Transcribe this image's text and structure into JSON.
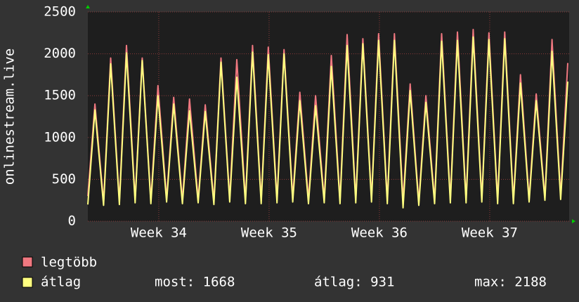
{
  "chart_data": {
    "type": "line",
    "ylabel": "onlinestream.live",
    "x": [
      0,
      0.45,
      1,
      1.45,
      2,
      2.45,
      3,
      3.45,
      4,
      4.45,
      5,
      5.45,
      6,
      6.45,
      7,
      7.45,
      8,
      8.45,
      9,
      9.45,
      10,
      10.45,
      11,
      11.45,
      12,
      12.45,
      13,
      13.45,
      14,
      14.45,
      15,
      15.45,
      16,
      16.45,
      17,
      17.45,
      18,
      18.45,
      19,
      19.45,
      20,
      20.45,
      21,
      21.45,
      22,
      22.45,
      23,
      23.45,
      24,
      24.45,
      25,
      25.45,
      26,
      26.45,
      27,
      27.45,
      28,
      28.45,
      29,
      29.45,
      30,
      30.45
    ],
    "series": [
      {
        "name": "legtöbb",
        "color": "#f07880",
        "values": [
          300,
          1400,
          230,
          1950,
          240,
          2100,
          260,
          1950,
          250,
          1620,
          270,
          1480,
          250,
          1460,
          260,
          1390,
          240,
          1950,
          270,
          1930,
          250,
          2100,
          250,
          2080,
          260,
          2050,
          280,
          1540,
          260,
          1500,
          260,
          1980,
          250,
          2230,
          260,
          2180,
          270,
          2240,
          250,
          2240,
          240,
          1640,
          230,
          1500,
          250,
          2240,
          260,
          2260,
          260,
          2290,
          270,
          2250,
          250,
          2260,
          250,
          1750,
          270,
          1520,
          280,
          2170,
          300,
          1890
        ]
      },
      {
        "name": "átlag",
        "color": "#ffff80",
        "values": [
          200,
          1330,
          190,
          1880,
          200,
          2010,
          220,
          1920,
          210,
          1500,
          230,
          1400,
          210,
          1320,
          220,
          1310,
          200,
          1900,
          230,
          1720,
          210,
          2020,
          210,
          1990,
          220,
          2000,
          230,
          1440,
          210,
          1380,
          220,
          1850,
          210,
          2100,
          220,
          2120,
          230,
          2160,
          210,
          2160,
          160,
          1560,
          190,
          1420,
          210,
          2150,
          220,
          2160,
          220,
          2200,
          230,
          2170,
          210,
          2180,
          210,
          1650,
          230,
          1440,
          250,
          2030,
          260,
          1668
        ]
      }
    ],
    "legend_stats": [
      "most: 1668",
      "átlag: 931",
      "max: 2188"
    ],
    "xlim": [
      0,
      30.54
    ],
    "xticks": [
      {
        "value": 4.5,
        "label": "Week 34"
      },
      {
        "value": 11.5,
        "label": "Week 35"
      },
      {
        "value": 18.5,
        "label": "Week 36"
      },
      {
        "value": 25.5,
        "label": "Week 37"
      }
    ],
    "ylim": [
      0,
      2500
    ],
    "yticks": [
      0,
      500,
      1000,
      1500,
      2000,
      2500
    ],
    "grid": true
  }
}
